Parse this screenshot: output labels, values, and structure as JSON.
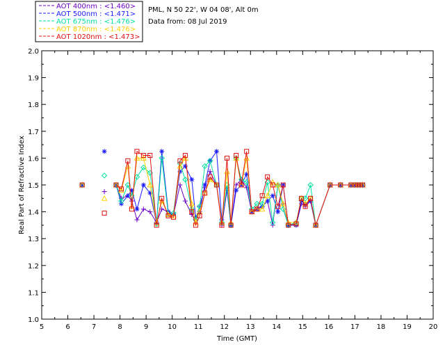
{
  "chart_data": {
    "type": "line",
    "header": {
      "site": "PML, N 50 22', W 04 08', Alt 0m",
      "date": "Data from: 08 Jul 2019"
    },
    "xlabel": "Time (GMT)",
    "ylabel": "Real Part of Refractive Index",
    "xlim": [
      5,
      20
    ],
    "ylim": [
      1.0,
      2.0
    ],
    "x_ticks": [
      "5",
      "6",
      "7",
      "8",
      "9",
      "10",
      "11",
      "12",
      "13",
      "14",
      "15",
      "16",
      "17",
      "18",
      "19",
      "20"
    ],
    "y_ticks": [
      "1.0",
      "1.1",
      "1.2",
      "1.3",
      "1.4",
      "1.5",
      "1.6",
      "1.7",
      "1.8",
      "1.9",
      "2.0"
    ],
    "legend": [
      {
        "label": "AOT  400nm : <1.460>",
        "color": "#6a00c8",
        "marker": "plus"
      },
      {
        "label": "AOT  500nm : <1.471>",
        "color": "#1a1aff",
        "marker": "asterisk"
      },
      {
        "label": "AOT  675nm : <1.476>",
        "color": "#00e0a0",
        "marker": "diamond"
      },
      {
        "label": "AOT  870nm : <1.476>",
        "color": "#ffd000",
        "marker": "triangle"
      },
      {
        "label": "AOT 1020nm : <1.473>",
        "color": "#e01010",
        "marker": "square"
      }
    ],
    "series": [
      {
        "name": "AOT  400nm",
        "color": "#6a00c8",
        "marker": "plus",
        "x": [
          6.55,
          7.4,
          7.85,
          8.05,
          8.3,
          8.45,
          8.65,
          8.9,
          9.15,
          9.4,
          9.6,
          9.85,
          10.05,
          10.3,
          10.5,
          10.75,
          10.9,
          11.05,
          11.25,
          11.45,
          11.7,
          11.9,
          12.1,
          12.25,
          12.45,
          12.65,
          12.85,
          13.05,
          13.25,
          13.45,
          13.65,
          13.85,
          14.05,
          14.25,
          14.45,
          14.75,
          14.95,
          15.1,
          15.3,
          15.5,
          16.05,
          16.45,
          16.85,
          17.0,
          17.1,
          17.2,
          17.3
        ],
        "y": [
          1.5,
          1.475,
          1.5,
          1.45,
          1.46,
          1.44,
          1.37,
          1.41,
          1.4,
          1.36,
          1.41,
          1.4,
          1.39,
          1.5,
          1.44,
          1.39,
          1.37,
          1.42,
          1.49,
          1.55,
          1.5,
          1.35,
          1.48,
          1.35,
          1.5,
          1.52,
          1.49,
          1.4,
          1.41,
          1.42,
          1.44,
          1.35,
          1.5,
          1.43,
          1.35,
          1.35,
          1.43,
          1.42,
          1.44,
          1.35,
          1.5,
          1.5,
          1.5,
          1.5,
          1.5,
          1.5,
          1.5
        ]
      },
      {
        "name": "AOT  500nm",
        "color": "#1a1aff",
        "marker": "asterisk",
        "x": [
          6.55,
          7.4,
          7.85,
          8.05,
          8.3,
          8.45,
          8.65,
          8.9,
          9.15,
          9.4,
          9.6,
          9.85,
          10.05,
          10.3,
          10.5,
          10.75,
          10.9,
          11.05,
          11.25,
          11.45,
          11.7,
          11.9,
          12.1,
          12.25,
          12.45,
          12.65,
          12.85,
          13.05,
          13.25,
          13.45,
          13.65,
          13.85,
          14.05,
          14.25,
          14.45,
          14.75,
          14.95,
          15.1,
          15.3,
          15.5,
          16.05,
          16.45,
          16.85,
          17.0,
          17.1,
          17.2,
          17.3
        ],
        "y": [
          1.5,
          1.625,
          1.5,
          1.43,
          1.46,
          1.48,
          1.41,
          1.5,
          1.47,
          1.36,
          1.625,
          1.4,
          1.39,
          1.55,
          1.57,
          1.52,
          1.38,
          1.4,
          1.5,
          1.59,
          1.625,
          1.37,
          1.49,
          1.35,
          1.48,
          1.5,
          1.54,
          1.4,
          1.41,
          1.42,
          1.44,
          1.46,
          1.4,
          1.5,
          1.35,
          1.35,
          1.44,
          1.43,
          1.44,
          1.35,
          1.5,
          1.5,
          1.5,
          1.5,
          1.5,
          1.5,
          1.5
        ]
      },
      {
        "name": "AOT  675nm",
        "color": "#00e0a0",
        "marker": "diamond",
        "x": [
          6.55,
          7.4,
          7.85,
          8.05,
          8.3,
          8.45,
          8.65,
          8.9,
          9.15,
          9.4,
          9.6,
          9.85,
          10.05,
          10.3,
          10.5,
          10.75,
          10.9,
          11.05,
          11.25,
          11.45,
          11.7,
          11.9,
          12.1,
          12.25,
          12.45,
          12.65,
          12.85,
          13.05,
          13.25,
          13.45,
          13.65,
          13.85,
          14.05,
          14.25,
          14.45,
          14.75,
          14.95,
          15.1,
          15.3,
          15.5,
          16.05,
          16.45,
          16.85,
          17.0,
          17.1,
          17.2,
          17.3
        ],
        "y": [
          1.5,
          1.535,
          1.5,
          1.44,
          1.5,
          1.46,
          1.53,
          1.565,
          1.545,
          1.355,
          1.6,
          1.39,
          1.395,
          1.58,
          1.52,
          1.41,
          1.37,
          1.42,
          1.57,
          1.59,
          1.5,
          1.36,
          1.5,
          1.35,
          1.6,
          1.52,
          1.51,
          1.41,
          1.43,
          1.43,
          1.51,
          1.36,
          1.5,
          1.41,
          1.35,
          1.36,
          1.45,
          1.45,
          1.5,
          1.35,
          1.5,
          1.5,
          1.5,
          1.5,
          1.5,
          1.5,
          1.5
        ]
      },
      {
        "name": "AOT  870nm",
        "color": "#ffd000",
        "marker": "triangle",
        "x": [
          6.55,
          7.4,
          7.85,
          8.05,
          8.3,
          8.45,
          8.65,
          8.9,
          9.15,
          9.4,
          9.6,
          9.85,
          10.05,
          10.3,
          10.5,
          10.75,
          10.9,
          11.05,
          11.25,
          11.45,
          11.7,
          11.9,
          12.1,
          12.25,
          12.45,
          12.65,
          12.85,
          13.05,
          13.25,
          13.45,
          13.65,
          13.85,
          14.05,
          14.25,
          14.45,
          14.75,
          14.95,
          15.1,
          15.3,
          15.5,
          16.05,
          16.45,
          16.85,
          17.0,
          17.1,
          17.2,
          17.3
        ],
        "y": [
          1.5,
          1.45,
          1.5,
          1.48,
          1.57,
          1.42,
          1.6,
          1.6,
          1.5,
          1.36,
          1.44,
          1.39,
          1.385,
          1.57,
          1.6,
          1.43,
          1.36,
          1.4,
          1.47,
          1.52,
          1.5,
          1.36,
          1.55,
          1.36,
          1.6,
          1.5,
          1.6,
          1.4,
          1.41,
          1.41,
          1.46,
          1.51,
          1.5,
          1.43,
          1.36,
          1.36,
          1.45,
          1.43,
          1.45,
          1.35,
          1.5,
          1.5,
          1.5,
          1.5,
          1.5,
          1.5,
          1.5
        ]
      },
      {
        "name": "AOT 1020nm",
        "color": "#e01010",
        "marker": "square",
        "x": [
          6.55,
          7.4,
          7.85,
          8.05,
          8.3,
          8.45,
          8.65,
          8.9,
          9.15,
          9.4,
          9.6,
          9.85,
          10.05,
          10.3,
          10.5,
          10.75,
          10.9,
          11.05,
          11.25,
          11.45,
          11.7,
          11.9,
          12.1,
          12.25,
          12.45,
          12.65,
          12.85,
          13.05,
          13.25,
          13.45,
          13.65,
          13.85,
          14.05,
          14.25,
          14.45,
          14.75,
          14.95,
          15.1,
          15.3,
          15.5,
          16.05,
          16.45,
          16.85,
          17.0,
          17.1,
          17.2,
          17.3
        ],
        "y": [
          1.5,
          1.395,
          1.5,
          1.485,
          1.59,
          1.41,
          1.625,
          1.61,
          1.61,
          1.35,
          1.45,
          1.385,
          1.38,
          1.59,
          1.61,
          1.4,
          1.35,
          1.385,
          1.47,
          1.53,
          1.5,
          1.35,
          1.6,
          1.35,
          1.61,
          1.5,
          1.625,
          1.4,
          1.41,
          1.46,
          1.53,
          1.5,
          1.42,
          1.5,
          1.35,
          1.355,
          1.45,
          1.42,
          1.45,
          1.35,
          1.5,
          1.5,
          1.5,
          1.5,
          1.5,
          1.5,
          1.5
        ]
      }
    ]
  }
}
